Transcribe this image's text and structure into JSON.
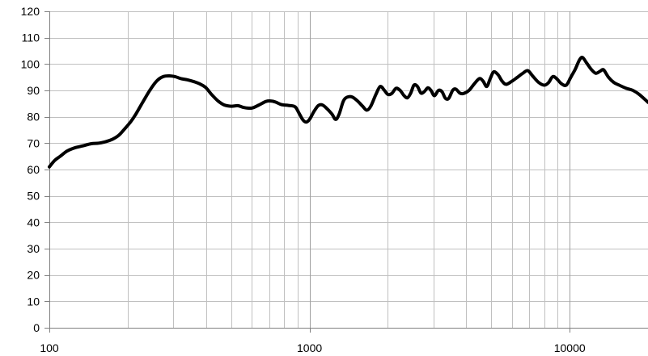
{
  "chart_data": {
    "type": "line",
    "title": "",
    "xlabel": "",
    "ylabel": "",
    "x_scale": "log",
    "xlim": [
      100,
      20000
    ],
    "ylim": [
      0,
      120
    ],
    "grid": true,
    "legend": "none",
    "y_ticks": [
      "0",
      "10",
      "20",
      "30",
      "40",
      "50",
      "60",
      "70",
      "80",
      "90",
      "100",
      "110",
      "120"
    ],
    "x_tick_labels": [
      {
        "value": 100,
        "label": "100"
      },
      {
        "value": 1000,
        "label": "1000"
      },
      {
        "value": 10000,
        "label": "10000"
      }
    ],
    "x_minor_grid": [
      200,
      300,
      400,
      500,
      600,
      700,
      800,
      900,
      2000,
      3000,
      4000,
      5000,
      6000,
      7000,
      8000,
      9000
    ],
    "colors": {
      "line": "#000000",
      "grid": "#c0c0c0",
      "axis": "#808080"
    },
    "series": [
      {
        "points": [
          [
            100,
            61
          ],
          [
            105,
            63.5
          ],
          [
            110,
            65
          ],
          [
            117,
            67
          ],
          [
            125,
            68.2
          ],
          [
            135,
            69
          ],
          [
            145,
            69.8
          ],
          [
            155,
            70
          ],
          [
            165,
            70.6
          ],
          [
            175,
            71.5
          ],
          [
            185,
            73
          ],
          [
            195,
            75.5
          ],
          [
            205,
            78
          ],
          [
            215,
            81
          ],
          [
            230,
            86
          ],
          [
            245,
            90.5
          ],
          [
            260,
            93.8
          ],
          [
            275,
            95.3
          ],
          [
            290,
            95.5
          ],
          [
            305,
            95.2
          ],
          [
            320,
            94.5
          ],
          [
            340,
            94
          ],
          [
            360,
            93.3
          ],
          [
            380,
            92.4
          ],
          [
            400,
            91
          ],
          [
            420,
            88.5
          ],
          [
            445,
            86
          ],
          [
            470,
            84.5
          ],
          [
            500,
            84
          ],
          [
            530,
            84.2
          ],
          [
            560,
            83.5
          ],
          [
            600,
            83.3
          ],
          [
            640,
            84.5
          ],
          [
            680,
            85.8
          ],
          [
            710,
            86
          ],
          [
            740,
            85.6
          ],
          [
            780,
            84.6
          ],
          [
            830,
            84.3
          ],
          [
            880,
            83.8
          ],
          [
            910,
            81.5
          ],
          [
            940,
            79
          ],
          [
            970,
            78
          ],
          [
            1000,
            79
          ],
          [
            1040,
            82
          ],
          [
            1080,
            84.2
          ],
          [
            1120,
            84.5
          ],
          [
            1170,
            83
          ],
          [
            1220,
            81
          ],
          [
            1260,
            79
          ],
          [
            1300,
            81
          ],
          [
            1350,
            86
          ],
          [
            1400,
            87.5
          ],
          [
            1460,
            87.5
          ],
          [
            1530,
            86
          ],
          [
            1600,
            84
          ],
          [
            1660,
            82.5
          ],
          [
            1720,
            84
          ],
          [
            1800,
            88.5
          ],
          [
            1870,
            91.5
          ],
          [
            1940,
            90
          ],
          [
            2000,
            88.5
          ],
          [
            2070,
            88.8
          ],
          [
            2150,
            90.8
          ],
          [
            2230,
            90
          ],
          [
            2310,
            88
          ],
          [
            2380,
            87.2
          ],
          [
            2450,
            89
          ],
          [
            2520,
            92
          ],
          [
            2600,
            91.5
          ],
          [
            2680,
            89
          ],
          [
            2760,
            89.5
          ],
          [
            2850,
            91
          ],
          [
            2930,
            90
          ],
          [
            3020,
            88
          ],
          [
            3130,
            90
          ],
          [
            3230,
            89.5
          ],
          [
            3330,
            87
          ],
          [
            3430,
            87
          ],
          [
            3550,
            90
          ],
          [
            3650,
            90.5
          ],
          [
            3780,
            89
          ],
          [
            3900,
            88.8
          ],
          [
            4100,
            90
          ],
          [
            4300,
            92.5
          ],
          [
            4500,
            94.5
          ],
          [
            4650,
            93.5
          ],
          [
            4800,
            91.5
          ],
          [
            4950,
            94.5
          ],
          [
            5100,
            97
          ],
          [
            5300,
            96
          ],
          [
            5500,
            93.5
          ],
          [
            5700,
            92.3
          ],
          [
            6000,
            93.5
          ],
          [
            6300,
            95
          ],
          [
            6600,
            96.5
          ],
          [
            6900,
            97.5
          ],
          [
            7200,
            95.5
          ],
          [
            7600,
            93
          ],
          [
            8000,
            92
          ],
          [
            8300,
            93
          ],
          [
            8600,
            95.2
          ],
          [
            8900,
            94.5
          ],
          [
            9300,
            92.5
          ],
          [
            9700,
            92
          ],
          [
            10100,
            95
          ],
          [
            10500,
            98
          ],
          [
            10900,
            101.5
          ],
          [
            11200,
            102.5
          ],
          [
            11600,
            100.5
          ],
          [
            12100,
            98
          ],
          [
            12600,
            96.5
          ],
          [
            13100,
            97.3
          ],
          [
            13500,
            97.8
          ],
          [
            14100,
            95
          ],
          [
            14800,
            93
          ],
          [
            15500,
            92
          ],
          [
            16500,
            90.8
          ],
          [
            17500,
            90
          ],
          [
            18500,
            88.5
          ],
          [
            20000,
            85.5
          ]
        ]
      }
    ]
  }
}
